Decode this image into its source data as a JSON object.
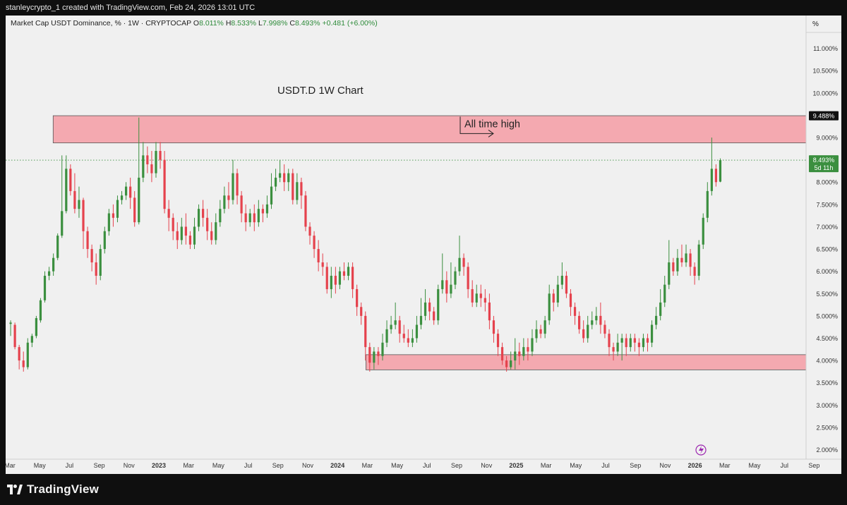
{
  "header": {
    "attribution": "stanleycrypto_1 created with TradingView.com, Feb 24, 2026 13:01 UTC"
  },
  "legend": {
    "symbol": "Market Cap USDT Dominance, % · 1W · CRYPTOCAP",
    "o_label": "O",
    "o_value": "8.011%",
    "h_label": "H",
    "h_value": "8.533%",
    "l_label": "L",
    "l_value": "7.998%",
    "c_label": "C",
    "c_value": "8.493%",
    "change": "+0.481 (+6.00%)"
  },
  "footer": {
    "brand": "TradingView"
  },
  "colors": {
    "up": "#3b8f3f",
    "down": "#e5424d",
    "zone_fill": "#f4a9b0",
    "zone_stroke": "#555555",
    "background": "#f0f0f0"
  },
  "chart_data": {
    "type": "candlestick",
    "title": "USDT.D 1W Chart",
    "price_unit_label": "%",
    "y_scale": "linear",
    "ylim": [
      1.85,
      11.5
    ],
    "y_ticks": [
      "11.000%",
      "10.500%",
      "10.000%",
      "9.000%",
      "8.500%",
      "8.000%",
      "7.500%",
      "7.000%",
      "6.500%",
      "6.000%",
      "5.500%",
      "5.000%",
      "4.500%",
      "4.000%",
      "3.500%",
      "3.000%",
      "2.500%",
      "2.000%"
    ],
    "x_ticks": [
      "Mar",
      "May",
      "Jul",
      "Sep",
      "Nov",
      "2023",
      "Mar",
      "May",
      "Jul",
      "Sep",
      "Nov",
      "2024",
      "Mar",
      "May",
      "Jul",
      "Sep",
      "Nov",
      "2025",
      "Mar",
      "May",
      "Jul",
      "Sep",
      "Nov",
      "2026",
      "Mar",
      "May",
      "Jul",
      "Sep"
    ],
    "x_range": [
      "2022-03",
      "2026-09"
    ],
    "grid": false,
    "last_price": {
      "label": "8.493%",
      "sub": "5d 11h",
      "value": 8.493
    },
    "ath_label": {
      "label": "9.488%",
      "value": 9.488
    },
    "annotation": "All time high",
    "zones": [
      {
        "name": "ath-zone",
        "from": "2022-06",
        "to": "2026-03",
        "low": 8.88,
        "high": 9.49
      },
      {
        "name": "support-zone",
        "from": "2024-03",
        "to": "2026-03",
        "low": 3.79,
        "high": 4.13
      }
    ],
    "candles": [
      [
        4.82,
        4.85,
        4.9,
        4.55
      ],
      [
        4.8,
        4.3,
        4.85,
        4.25
      ],
      [
        4.3,
        4.0,
        4.35,
        3.8
      ],
      [
        4.0,
        3.85,
        4.2,
        3.75
      ],
      [
        3.85,
        4.4,
        4.5,
        3.8
      ],
      [
        4.4,
        4.55,
        4.6,
        4.3
      ],
      [
        4.55,
        4.95,
        5.0,
        4.5
      ],
      [
        4.9,
        5.35,
        5.4,
        4.85
      ],
      [
        5.35,
        5.9,
        6.0,
        5.3
      ],
      [
        5.9,
        6.0,
        6.1,
        5.8
      ],
      [
        6.0,
        6.3,
        6.4,
        5.9
      ],
      [
        6.3,
        6.8,
        6.85,
        6.25
      ],
      [
        6.8,
        7.35,
        8.6,
        6.75
      ],
      [
        7.35,
        8.3,
        8.6,
        7.3
      ],
      [
        8.3,
        7.8,
        8.4,
        7.7
      ],
      [
        7.8,
        7.4,
        8.2,
        7.3
      ],
      [
        7.4,
        7.6,
        7.9,
        7.2
      ],
      [
        7.6,
        6.9,
        7.65,
        6.5
      ],
      [
        6.9,
        6.5,
        7.0,
        6.3
      ],
      [
        6.5,
        6.2,
        6.6,
        6.0
      ],
      [
        6.2,
        5.9,
        6.4,
        5.7
      ],
      [
        5.9,
        6.5,
        6.6,
        5.8
      ],
      [
        6.5,
        6.9,
        7.0,
        6.4
      ],
      [
        6.9,
        7.3,
        7.4,
        6.8
      ],
      [
        7.3,
        7.2,
        7.5,
        7.0
      ],
      [
        7.2,
        7.6,
        7.7,
        7.1
      ],
      [
        7.6,
        7.7,
        7.8,
        7.5
      ],
      [
        7.7,
        7.9,
        8.0,
        7.6
      ],
      [
        7.9,
        7.65,
        8.1,
        7.4
      ],
      [
        7.65,
        7.1,
        7.8,
        7.0
      ],
      [
        7.1,
        8.1,
        9.45,
        7.05
      ],
      [
        8.1,
        8.6,
        8.9,
        8.0
      ],
      [
        8.6,
        8.4,
        8.8,
        8.2
      ],
      [
        8.4,
        8.2,
        8.7,
        8.0
      ],
      [
        8.2,
        8.7,
        8.9,
        8.1
      ],
      [
        8.7,
        8.5,
        8.9,
        8.3
      ],
      [
        8.5,
        7.4,
        8.7,
        7.3
      ],
      [
        7.4,
        7.2,
        7.6,
        6.9
      ],
      [
        7.2,
        6.9,
        7.3,
        6.7
      ],
      [
        6.9,
        6.7,
        7.1,
        6.5
      ],
      [
        6.7,
        7.0,
        7.2,
        6.6
      ],
      [
        7.0,
        6.8,
        7.3,
        6.6
      ],
      [
        6.8,
        6.6,
        6.9,
        6.5
      ],
      [
        6.6,
        7.0,
        7.2,
        6.5
      ],
      [
        7.0,
        7.4,
        7.5,
        6.9
      ],
      [
        7.4,
        7.2,
        7.6,
        7.0
      ],
      [
        7.2,
        6.9,
        7.4,
        6.7
      ],
      [
        6.9,
        6.7,
        7.1,
        6.6
      ],
      [
        6.7,
        7.1,
        7.3,
        6.6
      ],
      [
        7.1,
        7.4,
        7.6,
        7.0
      ],
      [
        7.4,
        7.7,
        7.9,
        7.3
      ],
      [
        7.7,
        7.6,
        8.0,
        7.4
      ],
      [
        7.6,
        8.2,
        8.5,
        7.5
      ],
      [
        8.2,
        7.7,
        8.3,
        7.5
      ],
      [
        7.7,
        7.3,
        7.8,
        7.1
      ],
      [
        7.3,
        7.1,
        7.5,
        6.9
      ],
      [
        7.1,
        7.3,
        7.4,
        7.0
      ],
      [
        7.3,
        7.1,
        7.5,
        6.9
      ],
      [
        7.1,
        7.4,
        7.6,
        7.0
      ],
      [
        7.4,
        7.3,
        7.5,
        7.1
      ],
      [
        7.3,
        7.5,
        7.7,
        7.2
      ],
      [
        7.5,
        7.9,
        8.2,
        7.4
      ],
      [
        7.9,
        8.1,
        8.3,
        7.8
      ],
      [
        8.1,
        8.2,
        8.5,
        8.0
      ],
      [
        8.2,
        8.0,
        8.4,
        7.8
      ],
      [
        8.0,
        8.2,
        8.3,
        7.8
      ],
      [
        8.2,
        7.6,
        8.3,
        7.5
      ],
      [
        7.6,
        8.0,
        8.2,
        7.5
      ],
      [
        8.0,
        7.7,
        8.1,
        7.4
      ],
      [
        7.7,
        7.0,
        7.8,
        6.9
      ],
      [
        7.0,
        6.8,
        7.1,
        6.6
      ],
      [
        6.8,
        6.5,
        6.9,
        6.3
      ],
      [
        6.5,
        6.2,
        6.7,
        6.0
      ],
      [
        6.2,
        6.1,
        6.4,
        5.9
      ],
      [
        6.1,
        5.6,
        6.2,
        5.5
      ],
      [
        5.6,
        5.9,
        6.1,
        5.4
      ],
      [
        5.9,
        5.7,
        6.1,
        5.5
      ],
      [
        5.7,
        6.0,
        6.1,
        5.6
      ],
      [
        6.0,
        5.9,
        6.2,
        5.8
      ],
      [
        5.9,
        6.1,
        6.2,
        5.8
      ],
      [
        6.1,
        5.6,
        6.2,
        5.4
      ],
      [
        5.6,
        5.2,
        5.7,
        5.0
      ],
      [
        5.2,
        5.0,
        5.3,
        4.8
      ],
      [
        5.0,
        4.3,
        5.1,
        4.0
      ],
      [
        4.3,
        3.95,
        4.4,
        3.75
      ],
      [
        3.95,
        4.2,
        4.3,
        3.8
      ],
      [
        4.2,
        4.1,
        4.3,
        3.9
      ],
      [
        4.1,
        4.4,
        4.6,
        4.0
      ],
      [
        4.4,
        4.7,
        4.9,
        4.3
      ],
      [
        4.7,
        4.8,
        5.0,
        4.6
      ],
      [
        4.8,
        4.9,
        5.3,
        4.7
      ],
      [
        4.9,
        4.6,
        5.0,
        4.4
      ],
      [
        4.6,
        4.5,
        4.8,
        4.4
      ],
      [
        4.5,
        4.4,
        4.7,
        4.3
      ],
      [
        4.4,
        4.5,
        4.7,
        4.3
      ],
      [
        4.5,
        4.8,
        5.0,
        4.4
      ],
      [
        4.8,
        5.0,
        5.4,
        4.7
      ],
      [
        5.0,
        5.3,
        5.6,
        4.9
      ],
      [
        5.3,
        5.1,
        5.4,
        4.9
      ],
      [
        5.1,
        4.9,
        5.2,
        4.8
      ],
      [
        4.9,
        5.6,
        5.7,
        4.8
      ],
      [
        5.6,
        5.8,
        6.4,
        5.5
      ],
      [
        5.8,
        5.5,
        6.0,
        5.3
      ],
      [
        5.5,
        5.7,
        6.2,
        5.4
      ],
      [
        5.7,
        6.0,
        6.1,
        5.6
      ],
      [
        6.0,
        6.3,
        6.8,
        5.9
      ],
      [
        6.3,
        6.1,
        6.4,
        5.9
      ],
      [
        6.1,
        5.6,
        6.2,
        5.4
      ],
      [
        5.6,
        5.3,
        5.8,
        5.2
      ],
      [
        5.3,
        5.5,
        5.7,
        5.2
      ],
      [
        5.5,
        5.4,
        5.7,
        5.2
      ],
      [
        5.4,
        5.3,
        5.6,
        5.1
      ],
      [
        5.3,
        4.9,
        5.5,
        4.7
      ],
      [
        4.9,
        4.6,
        5.0,
        4.4
      ],
      [
        4.6,
        4.3,
        4.7,
        4.1
      ],
      [
        4.3,
        4.0,
        4.4,
        3.9
      ],
      [
        4.0,
        3.85,
        4.1,
        3.75
      ],
      [
        3.85,
        4.0,
        4.2,
        3.8
      ],
      [
        4.0,
        4.2,
        4.5,
        3.8
      ],
      [
        4.2,
        4.1,
        4.4,
        3.9
      ],
      [
        4.1,
        4.3,
        4.5,
        4.0
      ],
      [
        4.3,
        4.2,
        4.5,
        4.0
      ],
      [
        4.2,
        4.5,
        4.7,
        4.1
      ],
      [
        4.5,
        4.7,
        4.9,
        4.4
      ],
      [
        4.7,
        4.6,
        4.8,
        4.5
      ],
      [
        4.6,
        4.9,
        5.0,
        4.5
      ],
      [
        4.9,
        5.5,
        5.7,
        4.8
      ],
      [
        5.5,
        5.3,
        5.6,
        5.1
      ],
      [
        5.3,
        5.7,
        5.9,
        5.2
      ],
      [
        5.7,
        5.9,
        6.2,
        5.6
      ],
      [
        5.9,
        5.5,
        6.0,
        5.4
      ],
      [
        5.5,
        5.2,
        5.6,
        5.0
      ],
      [
        5.2,
        5.0,
        5.3,
        4.8
      ],
      [
        5.0,
        4.7,
        5.1,
        4.6
      ],
      [
        4.7,
        4.5,
        4.9,
        4.4
      ],
      [
        4.5,
        4.8,
        5.0,
        4.4
      ],
      [
        4.8,
        4.9,
        5.1,
        4.7
      ],
      [
        4.9,
        5.0,
        5.2,
        4.8
      ],
      [
        5.0,
        4.8,
        5.3,
        4.6
      ],
      [
        4.8,
        4.6,
        4.9,
        4.5
      ],
      [
        4.6,
        4.3,
        4.7,
        4.1
      ],
      [
        4.3,
        4.2,
        4.4,
        4.0
      ],
      [
        4.2,
        4.4,
        4.6,
        4.1
      ],
      [
        4.4,
        4.5,
        4.6,
        4.0
      ],
      [
        4.5,
        4.3,
        4.6,
        4.1
      ],
      [
        4.3,
        4.5,
        4.6,
        4.2
      ],
      [
        4.5,
        4.4,
        4.6,
        4.2
      ],
      [
        4.4,
        4.3,
        4.5,
        4.1
      ],
      [
        4.3,
        4.5,
        4.6,
        4.2
      ],
      [
        4.5,
        4.4,
        4.6,
        4.2
      ],
      [
        4.4,
        4.8,
        4.9,
        4.3
      ],
      [
        4.8,
        5.0,
        5.2,
        4.7
      ],
      [
        5.0,
        5.3,
        5.6,
        4.9
      ],
      [
        5.3,
        5.7,
        5.9,
        5.2
      ],
      [
        5.7,
        6.2,
        6.7,
        5.6
      ],
      [
        6.2,
        6.0,
        6.3,
        5.9
      ],
      [
        6.0,
        6.3,
        6.5,
        5.9
      ],
      [
        6.3,
        6.2,
        6.6,
        6.1
      ],
      [
        6.2,
        6.4,
        6.6,
        6.1
      ],
      [
        6.4,
        6.1,
        6.5,
        5.9
      ],
      [
        6.1,
        5.9,
        6.2,
        5.7
      ],
      [
        5.9,
        6.6,
        6.7,
        5.8
      ],
      [
        6.6,
        7.2,
        7.3,
        6.5
      ],
      [
        7.2,
        7.8,
        8.0,
        7.1
      ],
      [
        7.8,
        8.3,
        9.0,
        7.7
      ],
      [
        8.3,
        8.0,
        8.4,
        7.9
      ],
      [
        8.011,
        8.493,
        8.533,
        7.998
      ]
    ]
  }
}
